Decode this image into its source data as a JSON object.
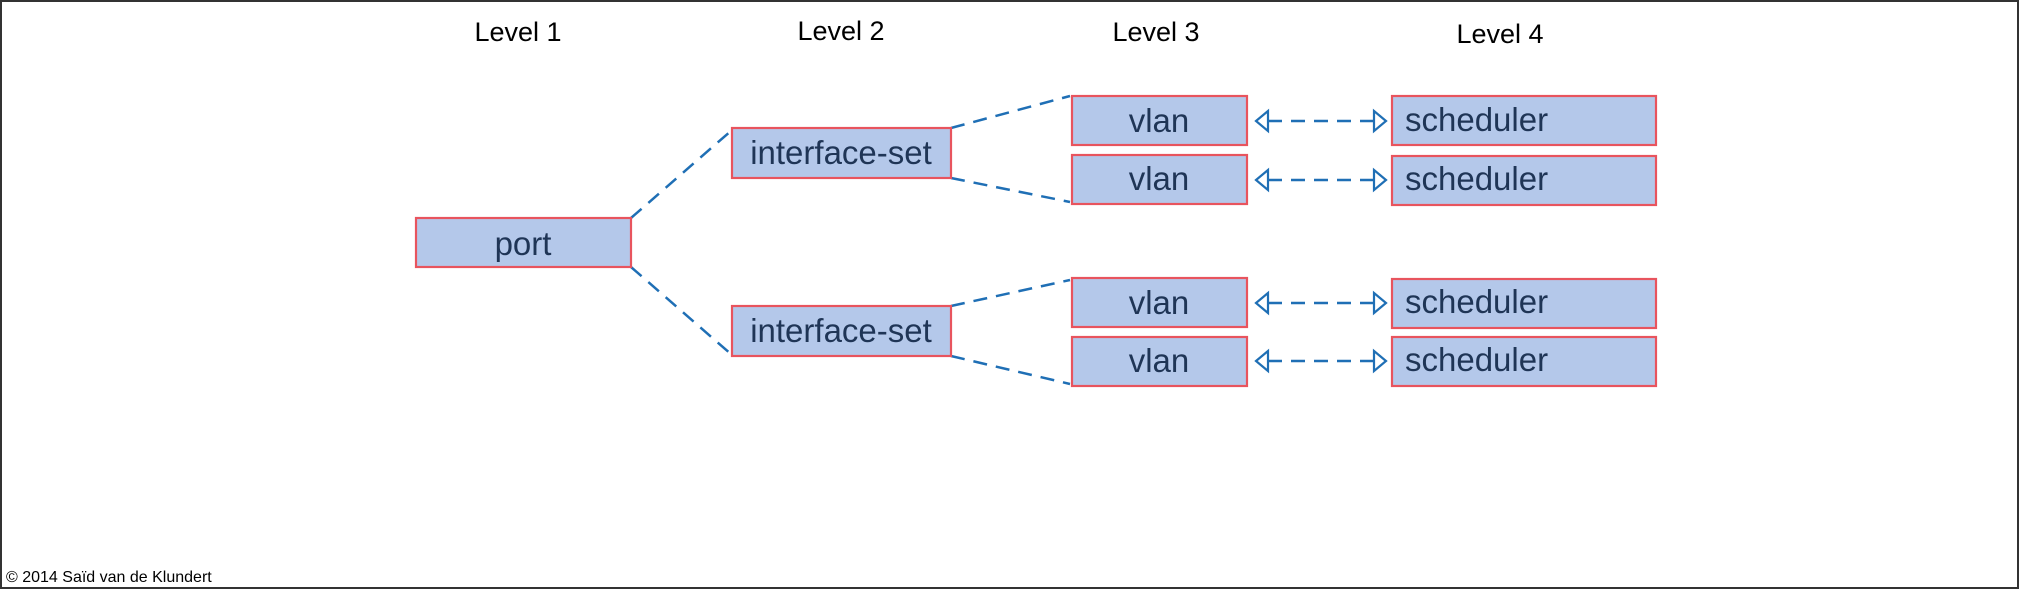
{
  "levels": {
    "level1": "Level 1",
    "level2": "Level 2",
    "level3": "Level 3",
    "level4": "Level 4"
  },
  "nodes": {
    "port": "port",
    "interface_set_top": "interface-set",
    "interface_set_bottom": "interface-set",
    "vlan_1": "vlan",
    "vlan_2": "vlan",
    "vlan_3": "vlan",
    "vlan_4": "vlan",
    "scheduler_1": "scheduler",
    "scheduler_2": "scheduler",
    "scheduler_3": "scheduler",
    "scheduler_4": "scheduler"
  },
  "colors": {
    "box_fill": "#b4c8ea",
    "box_border": "#e8545e",
    "connector": "#1f6fb5",
    "node_text": "#1f3556"
  },
  "copyright": "© 2014 Saïd van de Klundert"
}
